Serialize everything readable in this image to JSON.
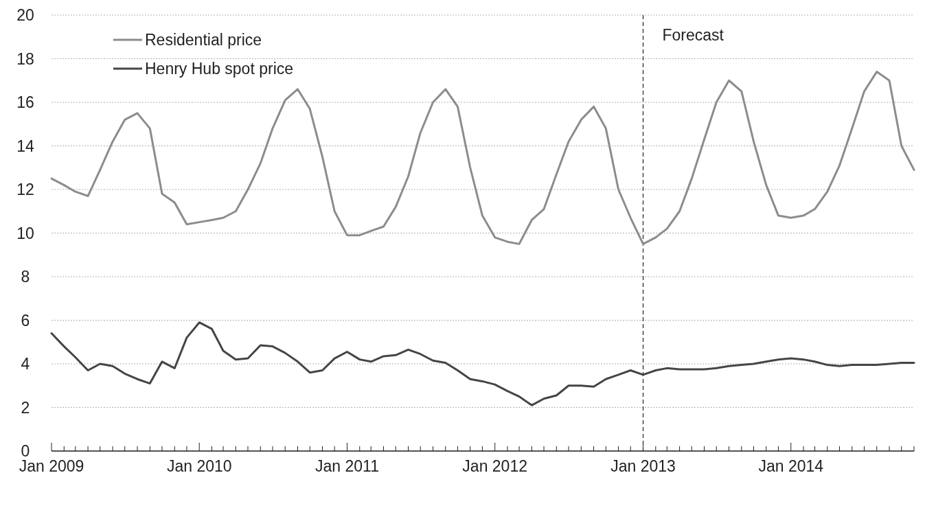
{
  "chart_data": {
    "type": "line",
    "x": [
      "2009-01",
      "2009-02",
      "2009-03",
      "2009-04",
      "2009-05",
      "2009-06",
      "2009-07",
      "2009-08",
      "2009-09",
      "2009-10",
      "2009-11",
      "2009-12",
      "2010-01",
      "2010-02",
      "2010-03",
      "2010-04",
      "2010-05",
      "2010-06",
      "2010-07",
      "2010-08",
      "2010-09",
      "2010-10",
      "2010-11",
      "2010-12",
      "2011-01",
      "2011-02",
      "2011-03",
      "2011-04",
      "2011-05",
      "2011-06",
      "2011-07",
      "2011-08",
      "2011-09",
      "2011-10",
      "2011-11",
      "2011-12",
      "2012-01",
      "2012-02",
      "2012-03",
      "2012-04",
      "2012-05",
      "2012-06",
      "2012-07",
      "2012-08",
      "2012-09",
      "2012-10",
      "2012-11",
      "2012-12",
      "2013-01",
      "2013-02",
      "2013-03",
      "2013-04",
      "2013-05",
      "2013-06",
      "2013-07",
      "2013-08",
      "2013-09",
      "2013-10",
      "2013-11",
      "2013-12",
      "2014-01",
      "2014-02",
      "2014-03",
      "2014-04",
      "2014-05",
      "2014-06",
      "2014-07",
      "2014-08",
      "2014-09",
      "2014-10",
      "2014-11"
    ],
    "series": [
      {
        "name": "Residential price",
        "color": "#8c8c8c",
        "values": [
          12.5,
          12.2,
          11.9,
          11.7,
          12.9,
          14.2,
          15.2,
          15.5,
          14.8,
          11.8,
          11.4,
          10.4,
          10.5,
          10.6,
          10.7,
          11.0,
          12.0,
          13.2,
          14.8,
          16.1,
          16.6,
          15.7,
          13.5,
          11.0,
          9.9,
          9.9,
          10.1,
          10.3,
          11.2,
          12.6,
          14.6,
          16.0,
          16.6,
          15.8,
          13.0,
          10.8,
          9.8,
          9.6,
          9.5,
          10.6,
          11.1,
          12.7,
          14.2,
          15.2,
          15.8,
          14.8,
          12.0,
          10.7,
          9.5,
          9.8,
          10.2,
          11.0,
          12.5,
          14.3,
          16.0,
          17.0,
          16.5,
          14.2,
          12.2,
          10.8,
          10.7,
          10.8,
          11.1,
          11.9,
          13.1,
          14.8,
          16.5,
          17.4,
          17.0,
          14.0,
          12.9
        ]
      },
      {
        "name": "Henry Hub spot price",
        "color": "#454545",
        "values": [
          5.4,
          4.8,
          4.3,
          3.7,
          4.0,
          3.9,
          3.55,
          3.3,
          3.1,
          4.1,
          3.8,
          5.2,
          5.9,
          5.6,
          4.6,
          4.2,
          4.25,
          4.85,
          4.8,
          4.5,
          4.1,
          3.6,
          3.7,
          4.25,
          4.55,
          4.2,
          4.1,
          4.35,
          4.4,
          4.65,
          4.45,
          4.15,
          4.05,
          3.7,
          3.3,
          3.2,
          3.05,
          2.75,
          2.5,
          2.1,
          2.4,
          2.55,
          3.0,
          3.0,
          2.95,
          3.3,
          3.5,
          3.7,
          3.5,
          3.7,
          3.8,
          3.75,
          3.75,
          3.75,
          3.8,
          3.9,
          3.95,
          4.0,
          4.1,
          4.2,
          4.25,
          4.2,
          4.1,
          3.95,
          3.9,
          3.95,
          3.95,
          3.95,
          4.0,
          4.05,
          4.05
        ]
      }
    ],
    "xlim": [
      "2009-01",
      "2014-11"
    ],
    "xticks": [
      {
        "value": "2009-01",
        "label": "Jan 2009"
      },
      {
        "value": "2009-02",
        "label": null
      },
      {
        "value": "2009-03",
        "label": null
      },
      {
        "value": "2009-04",
        "label": null
      },
      {
        "value": "2009-05",
        "label": null
      },
      {
        "value": "2009-06",
        "label": null
      },
      {
        "value": "2009-07",
        "label": null
      },
      {
        "value": "2009-08",
        "label": null
      },
      {
        "value": "2009-09",
        "label": null
      },
      {
        "value": "2009-10",
        "label": null
      },
      {
        "value": "2009-11",
        "label": null
      },
      {
        "value": "2009-12",
        "label": null
      },
      {
        "value": "2010-01",
        "label": "Jan 2010"
      },
      {
        "value": "2010-02",
        "label": null
      },
      {
        "value": "2010-03",
        "label": null
      },
      {
        "value": "2010-04",
        "label": null
      },
      {
        "value": "2010-05",
        "label": null
      },
      {
        "value": "2010-06",
        "label": null
      },
      {
        "value": "2010-07",
        "label": null
      },
      {
        "value": "2010-08",
        "label": null
      },
      {
        "value": "2010-09",
        "label": null
      },
      {
        "value": "2010-10",
        "label": null
      },
      {
        "value": "2010-11",
        "label": null
      },
      {
        "value": "2010-12",
        "label": null
      },
      {
        "value": "2011-01",
        "label": "Jan 2011"
      },
      {
        "value": "2011-02",
        "label": null
      },
      {
        "value": "2011-03",
        "label": null
      },
      {
        "value": "2011-04",
        "label": null
      },
      {
        "value": "2011-05",
        "label": null
      },
      {
        "value": "2011-06",
        "label": null
      },
      {
        "value": "2011-07",
        "label": null
      },
      {
        "value": "2011-08",
        "label": null
      },
      {
        "value": "2011-09",
        "label": null
      },
      {
        "value": "2011-10",
        "label": null
      },
      {
        "value": "2011-11",
        "label": null
      },
      {
        "value": "2011-12",
        "label": null
      },
      {
        "value": "2012-01",
        "label": "Jan 2012"
      },
      {
        "value": "2012-02",
        "label": null
      },
      {
        "value": "2012-03",
        "label": null
      },
      {
        "value": "2012-04",
        "label": null
      },
      {
        "value": "2012-05",
        "label": null
      },
      {
        "value": "2012-06",
        "label": null
      },
      {
        "value": "2012-07",
        "label": null
      },
      {
        "value": "2012-08",
        "label": null
      },
      {
        "value": "2012-09",
        "label": null
      },
      {
        "value": "2012-10",
        "label": null
      },
      {
        "value": "2012-11",
        "label": null
      },
      {
        "value": "2012-12",
        "label": null
      },
      {
        "value": "2013-01",
        "label": "Jan 2013"
      },
      {
        "value": "2013-02",
        "label": null
      },
      {
        "value": "2013-03",
        "label": null
      },
      {
        "value": "2013-04",
        "label": null
      },
      {
        "value": "2013-05",
        "label": null
      },
      {
        "value": "2013-06",
        "label": null
      },
      {
        "value": "2013-07",
        "label": null
      },
      {
        "value": "2013-08",
        "label": null
      },
      {
        "value": "2013-09",
        "label": null
      },
      {
        "value": "2013-10",
        "label": null
      },
      {
        "value": "2013-11",
        "label": null
      },
      {
        "value": "2013-12",
        "label": null
      },
      {
        "value": "2014-01",
        "label": "Jan 2014"
      },
      {
        "value": "2014-02",
        "label": null
      },
      {
        "value": "2014-03",
        "label": null
      },
      {
        "value": "2014-04",
        "label": null
      },
      {
        "value": "2014-05",
        "label": null
      },
      {
        "value": "2014-06",
        "label": null
      },
      {
        "value": "2014-07",
        "label": null
      },
      {
        "value": "2014-08",
        "label": null
      },
      {
        "value": "2014-09",
        "label": null
      },
      {
        "value": "2014-10",
        "label": null
      },
      {
        "value": "2014-11",
        "label": null
      }
    ],
    "ylim": [
      0,
      20
    ],
    "yticks": [
      0,
      2,
      4,
      6,
      8,
      10,
      12,
      14,
      16,
      18,
      20
    ],
    "grid": "y",
    "legend": "top left",
    "marker": "none",
    "line_style": "solid",
    "ref_lines": [
      {
        "axis": "x",
        "value": "2013-01",
        "label": "Forecast",
        "color": "#222222",
        "line_style": "dashed"
      }
    ]
  }
}
